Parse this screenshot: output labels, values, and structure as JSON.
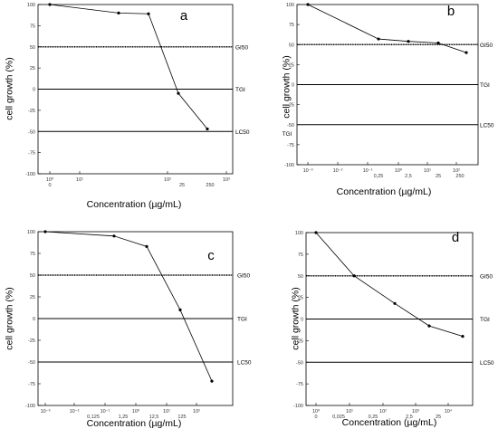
{
  "chart_data": [
    {
      "type": "line",
      "panel_label": "a",
      "ylabel": "cell growth (%)",
      "xlabel": "Concentration (µg/mL)",
      "ylim": [
        -100,
        100
      ],
      "yticks": [
        "100",
        "75",
        "50",
        "25",
        "0",
        "-25",
        "-50",
        "-75",
        "-100"
      ],
      "xticks": [
        "10⁰",
        "10¹",
        "10²",
        "10³"
      ],
      "xtick_sublabels": [
        "0",
        "25",
        "250"
      ],
      "reference_lines": [
        {
          "name": "GI50",
          "y": 50
        },
        {
          "name": "TGI",
          "y": 0
        },
        {
          "name": "LC50",
          "y": -50
        }
      ],
      "x": [
        "0",
        "2.5",
        "5",
        "25",
        "250"
      ],
      "values": [
        100,
        90,
        89,
        -5,
        -47
      ]
    },
    {
      "type": "line",
      "panel_label": "b",
      "ylabel": "cell growth (%)",
      "xlabel": "Concentration (µg/mL)",
      "ylim": [
        -100,
        100
      ],
      "yticks": [
        "100",
        "75",
        "50",
        "25",
        "0",
        "-25",
        "-50",
        "-75",
        "-100"
      ],
      "xticks": [
        "10⁻³",
        "10⁻²",
        "10⁻¹",
        "10⁰",
        "10¹",
        "10²"
      ],
      "xtick_sublabels": [
        "0,25",
        "2,5",
        "25",
        "250"
      ],
      "reference_lines": [
        {
          "name": "GI50",
          "y": 50
        },
        {
          "name": "TGI",
          "y": 0
        },
        {
          "name": "LC50",
          "y": -50
        }
      ],
      "extra_labels": [
        "TGI"
      ],
      "x": [
        "0.001",
        "0.25",
        "2.5",
        "25",
        "250"
      ],
      "values": [
        100,
        57,
        54,
        52,
        40
      ]
    },
    {
      "type": "line",
      "panel_label": "c",
      "ylabel": "cell growth (%)",
      "xlabel": "Concentration (µg/mL)",
      "ylim": [
        -100,
        100
      ],
      "yticks": [
        "100",
        "75",
        "50",
        "25",
        "0",
        "-25",
        "-50",
        "-75",
        "-100"
      ],
      "xticks": [
        "10⁻³",
        "10⁻²",
        "10⁻¹",
        "10⁰",
        "10¹",
        "10²"
      ],
      "xtick_sublabels": [
        "0,125",
        "1,25",
        "12,5",
        "125"
      ],
      "reference_lines": [
        {
          "name": "GI50",
          "y": 50
        },
        {
          "name": "TGI",
          "y": 0
        },
        {
          "name": "LC50",
          "y": -50
        }
      ],
      "x": [
        "0.001",
        "0.125",
        "1.25",
        "12.5",
        "125"
      ],
      "values": [
        100,
        95,
        83,
        10,
        -72
      ]
    },
    {
      "type": "line",
      "panel_label": "d",
      "ylabel": "cell growth (%)",
      "xlabel": "Concentration (µg/mL)",
      "ylim": [
        -100,
        100
      ],
      "yticks": [
        "100",
        "75",
        "50",
        "25",
        "0",
        "-25",
        "-50",
        "-75",
        "-100"
      ],
      "xticks": [
        "10⁰",
        "10¹",
        "10²",
        "10³",
        "10⁴"
      ],
      "xtick_sublabels": [
        "0",
        "0,025",
        "0,25",
        "2,5",
        "25"
      ],
      "reference_lines": [
        {
          "name": "GI50",
          "y": 50
        },
        {
          "name": "TGI",
          "y": 0
        },
        {
          "name": "LC50",
          "y": -50
        }
      ],
      "x": [
        "0",
        "0.025",
        "0.25",
        "2.5",
        "25"
      ],
      "values": [
        100,
        50,
        18,
        -8,
        -20
      ]
    }
  ]
}
